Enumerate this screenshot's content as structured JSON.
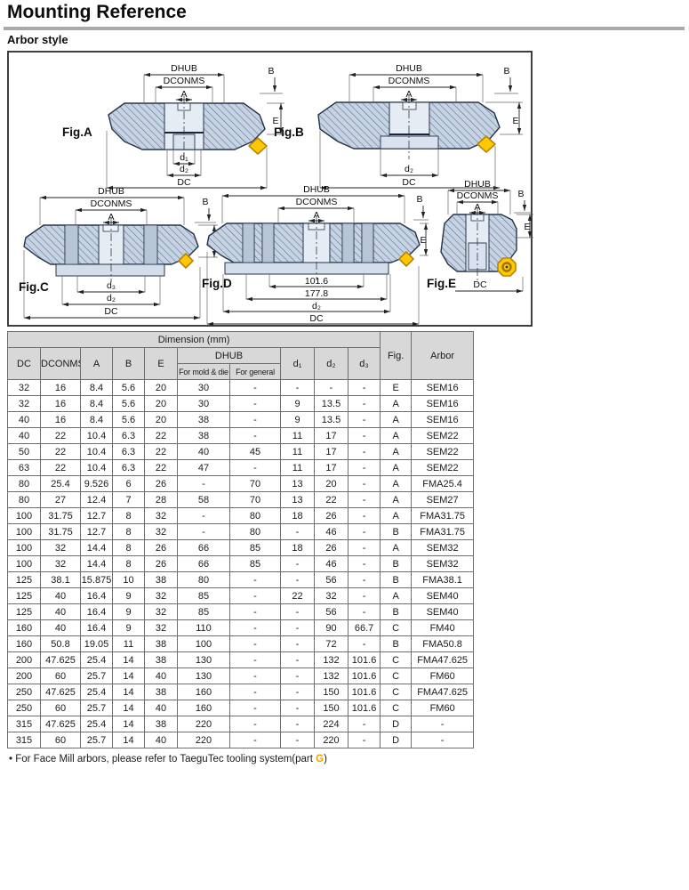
{
  "page": {
    "title": "Mounting Reference",
    "subtitle": "Arbor style"
  },
  "figures": {
    "fig_a": {
      "label": "Fig.A",
      "dhub": "DHUB",
      "dconms": "DCONMS",
      "a": "A",
      "b": "B",
      "e": "E",
      "d1": "d₁",
      "d2": "d₂",
      "dc": "DC"
    },
    "fig_b": {
      "label": "Fig.B",
      "dhub": "DHUB",
      "dconms": "DCONMS",
      "a": "A",
      "b": "B",
      "e": "E",
      "d2": "d₂",
      "dc": "DC"
    },
    "fig_c": {
      "label": "Fig.C",
      "dhub": "DHUB",
      "dconms": "DCONMS",
      "a": "A",
      "b": "B",
      "e": "E",
      "d3": "d₃",
      "d2": "d₂",
      "dc": "DC"
    },
    "fig_d": {
      "label": "Fig.D",
      "dhub": "DHUB",
      "dconms": "DCONMS",
      "a": "A",
      "b": "B",
      "e": "E",
      "bc1": "101.6",
      "bc2": "177.8",
      "d2": "d₂",
      "dc": "DC"
    },
    "fig_e": {
      "label": "Fig.E",
      "dhub": "DHUB",
      "dconms": "DCONMS",
      "a": "A",
      "b": "B",
      "e": "E",
      "dc": "DC"
    }
  },
  "table": {
    "group_header": "Dimension (mm)",
    "col_dc": "DC",
    "col_dconms": "DCONMS",
    "col_a": "A",
    "col_b": "B",
    "col_e": "E",
    "col_dhub": "DHUB",
    "col_dhub_mold": "For mold & die",
    "col_dhub_general": "For general",
    "col_d1": "d₁",
    "col_d2": "d₂",
    "col_d3": "d₃",
    "col_fig": "Fig.",
    "col_arbor": "Arbor",
    "rows": [
      [
        "32",
        "16",
        "8.4",
        "5.6",
        "20",
        "30",
        "-",
        "-",
        "-",
        "-",
        "E",
        "SEM16"
      ],
      [
        "32",
        "16",
        "8.4",
        "5.6",
        "20",
        "30",
        "-",
        "9",
        "13.5",
        "-",
        "A",
        "SEM16"
      ],
      [
        "40",
        "16",
        "8.4",
        "5.6",
        "20",
        "38",
        "-",
        "9",
        "13.5",
        "-",
        "A",
        "SEM16"
      ],
      [
        "40",
        "22",
        "10.4",
        "6.3",
        "22",
        "38",
        "-",
        "11",
        "17",
        "-",
        "A",
        "SEM22"
      ],
      [
        "50",
        "22",
        "10.4",
        "6.3",
        "22",
        "40",
        "45",
        "11",
        "17",
        "-",
        "A",
        "SEM22"
      ],
      [
        "63",
        "22",
        "10.4",
        "6.3",
        "22",
        "47",
        "-",
        "11",
        "17",
        "-",
        "A",
        "SEM22"
      ],
      [
        "80",
        "25.4",
        "9.526",
        "6",
        "26",
        "-",
        "70",
        "13",
        "20",
        "-",
        "A",
        "FMA25.4"
      ],
      [
        "80",
        "27",
        "12.4",
        "7",
        "28",
        "58",
        "70",
        "13",
        "22",
        "-",
        "A",
        "SEM27"
      ],
      [
        "100",
        "31.75",
        "12.7",
        "8",
        "32",
        "-",
        "80",
        "18",
        "26",
        "-",
        "A",
        "FMA31.75"
      ],
      [
        "100",
        "31.75",
        "12.7",
        "8",
        "32",
        "-",
        "80",
        "-",
        "46",
        "-",
        "B",
        "FMA31.75"
      ],
      [
        "100",
        "32",
        "14.4",
        "8",
        "26",
        "66",
        "85",
        "18",
        "26",
        "-",
        "A",
        "SEM32"
      ],
      [
        "100",
        "32",
        "14.4",
        "8",
        "26",
        "66",
        "85",
        "-",
        "46",
        "-",
        "B",
        "SEM32"
      ],
      [
        "125",
        "38.1",
        "15.875",
        "10",
        "38",
        "80",
        "-",
        "-",
        "56",
        "-",
        "B",
        "FMA38.1"
      ],
      [
        "125",
        "40",
        "16.4",
        "9",
        "32",
        "85",
        "-",
        "22",
        "32",
        "-",
        "A",
        "SEM40"
      ],
      [
        "125",
        "40",
        "16.4",
        "9",
        "32",
        "85",
        "-",
        "-",
        "56",
        "-",
        "B",
        "SEM40"
      ],
      [
        "160",
        "40",
        "16.4",
        "9",
        "32",
        "110",
        "-",
        "-",
        "90",
        "66.7",
        "C",
        "FM40"
      ],
      [
        "160",
        "50.8",
        "19.05",
        "11",
        "38",
        "100",
        "-",
        "-",
        "72",
        "-",
        "B",
        "FMA50.8"
      ],
      [
        "200",
        "47.625",
        "25.4",
        "14",
        "38",
        "130",
        "-",
        "-",
        "132",
        "101.6",
        "C",
        "FMA47.625"
      ],
      [
        "200",
        "60",
        "25.7",
        "14",
        "40",
        "130",
        "-",
        "-",
        "132",
        "101.6",
        "C",
        "FM60"
      ],
      [
        "250",
        "47.625",
        "25.4",
        "14",
        "38",
        "160",
        "-",
        "-",
        "150",
        "101.6",
        "C",
        "FMA47.625"
      ],
      [
        "250",
        "60",
        "25.7",
        "14",
        "40",
        "160",
        "-",
        "-",
        "150",
        "101.6",
        "C",
        "FM60"
      ],
      [
        "315",
        "47.625",
        "25.4",
        "14",
        "38",
        "220",
        "-",
        "-",
        "224",
        "-",
        "D",
        "-"
      ],
      [
        "315",
        "60",
        "25.7",
        "14",
        "40",
        "220",
        "-",
        "-",
        "220",
        "-",
        "D",
        "-"
      ]
    ]
  },
  "footnote": {
    "bullet": "•",
    "text_before": "For Face Mill arbors, please refer to TaeguTec tooling system(part ",
    "highlight": "G",
    "text_after": ")"
  },
  "colors": {
    "insert_yellow": "#ffc800",
    "body_fill": "#c7d3e2",
    "hatch_line": "#51708f",
    "highlight_orange": "#f0a000",
    "header_gray": "#d8d8d8"
  }
}
